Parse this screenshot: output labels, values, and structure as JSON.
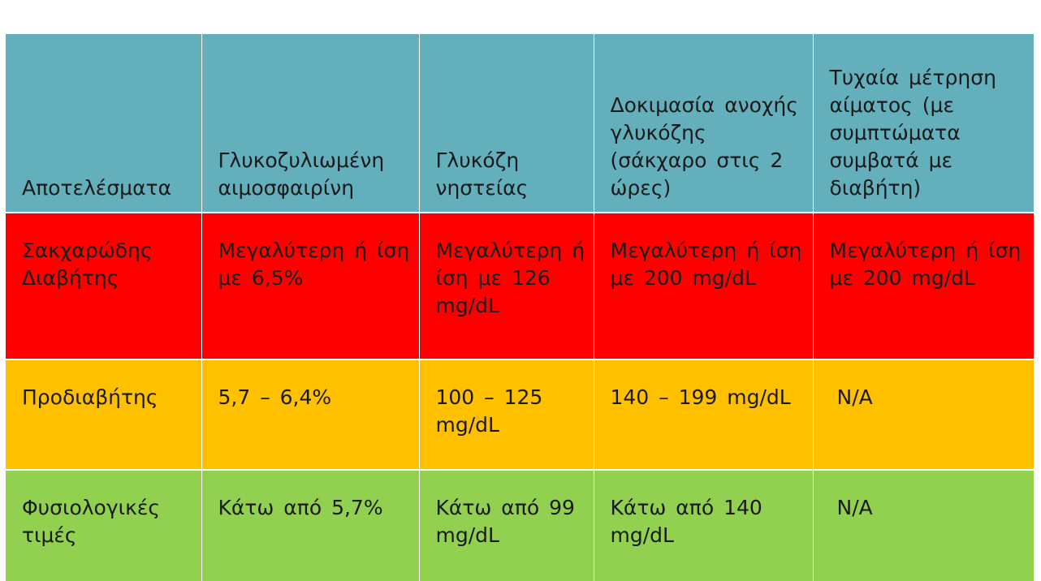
{
  "table": {
    "header": {
      "results": "Αποτελέσματα",
      "hba1c": "Γλυκοζυλιωμένη αιμοσφαιρίνη",
      "fasting": "Γλυκόζη νηστείας",
      "ogtt": "Δοκιμασία ανοχής γλυκόζης (σάκχαρο στις 2 ώρες)",
      "random": "Τυχαία μέτρηση αίματος (με συμπτώματα συμβατά με διαβήτη)"
    },
    "rows": [
      {
        "label": "Σακχαρώδης Διαβήτης",
        "hba1c": "Μεγαλύτερη ή ίση με 6,5%",
        "fasting": "Μεγαλύτερη ή ίση με 126 mg/dL",
        "ogtt": "Μεγαλύτερη ή ίση με 200 mg/dL",
        "random": "Μεγαλύτερη ή ίση με 200 mg/dL",
        "color": "#ff0000"
      },
      {
        "label": "Προδιαβήτης",
        "hba1c": "5,7 – 6,4%",
        "fasting": "100 – 125 mg/dL",
        "ogtt": "140 – 199 mg/dL",
        "random": "N/A",
        "color": "#ffc000"
      },
      {
        "label": "Φυσιολογικές τιμές",
        "hba1c": "Κάτω από 5,7%",
        "fasting": "Κάτω από 99 mg/dL",
        "ogtt": "Κάτω από 140 mg/dL",
        "random": "N/A",
        "color": "#92d050"
      }
    ],
    "header_color": "#64afbc"
  }
}
